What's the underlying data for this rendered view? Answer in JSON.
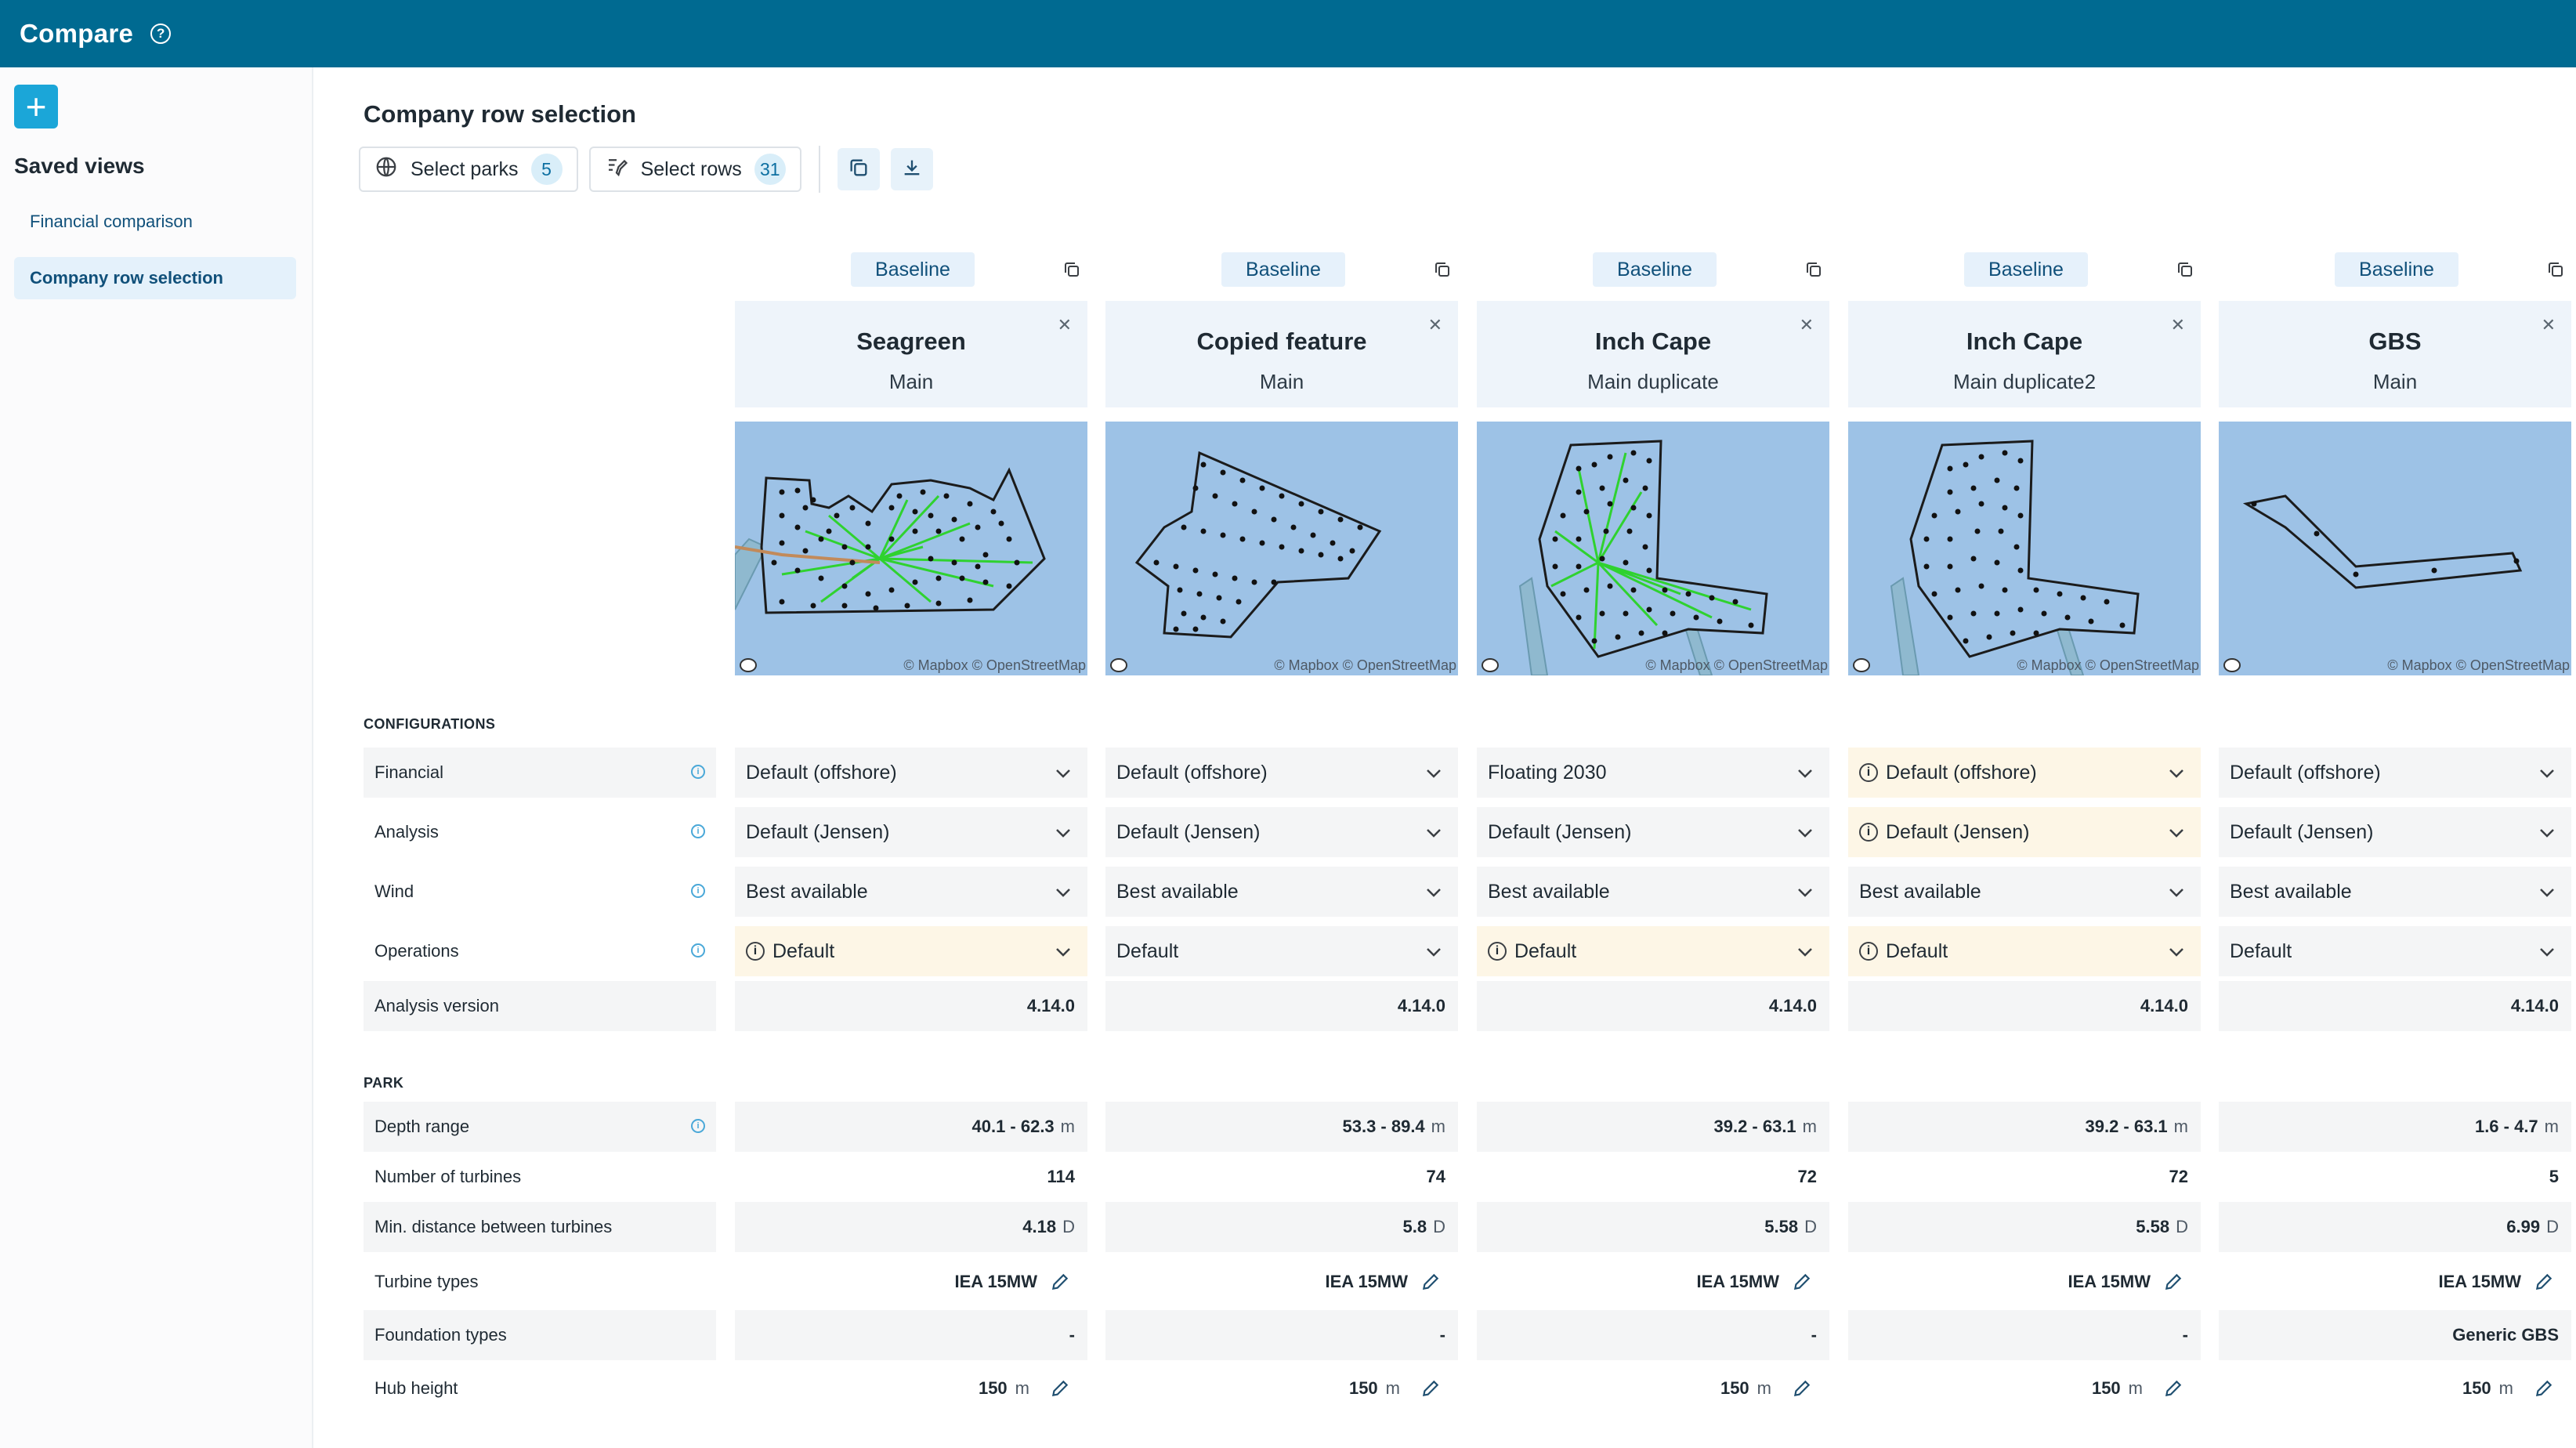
{
  "app": {
    "title": "Compare"
  },
  "sidebar": {
    "add_label": "+",
    "saved_views_title": "Saved views",
    "items": [
      {
        "label": "Financial comparison",
        "active": false
      },
      {
        "label": "Company row selection",
        "active": true
      }
    ]
  },
  "page": {
    "title": "Company row selection"
  },
  "toolbar": {
    "select_parks_label": "Select parks",
    "select_parks_count": "5",
    "select_rows_label": "Select rows",
    "select_rows_count": "31"
  },
  "sections": {
    "configurations": "CONFIGURATIONS",
    "park": "PARK"
  },
  "row_labels": {
    "financial": "Financial",
    "analysis": "Analysis",
    "wind": "Wind",
    "operations": "Operations",
    "analysis_version": "Analysis version",
    "depth_range": "Depth range",
    "num_turbines": "Number of turbines",
    "min_distance": "Min. distance between turbines",
    "turbine_types": "Turbine types",
    "foundation_types": "Foundation types",
    "hub_height": "Hub height"
  },
  "units": {
    "depth": "m",
    "distance": "D",
    "height": "m"
  },
  "map_attribution": "© Mapbox © OpenStreetMap",
  "columns": [
    {
      "badge": "Baseline",
      "name": "Seagreen",
      "branch": "Main",
      "financial": "Default (offshore)",
      "financial_warn": false,
      "analysis": "Default (Jensen)",
      "analysis_warn": false,
      "wind": "Best available",
      "operations": "Default",
      "operations_warn": true,
      "analysis_version": "4.14.0",
      "depth_range": "40.1 - 62.3",
      "num_turbines": "114",
      "min_distance": "4.18",
      "turbine_types": "IEA 15MW",
      "foundation_types": "-",
      "hub_height": "150"
    },
    {
      "badge": "Baseline",
      "name": "Copied feature",
      "branch": "Main",
      "financial": "Default (offshore)",
      "financial_warn": false,
      "analysis": "Default (Jensen)",
      "analysis_warn": false,
      "wind": "Best available",
      "operations": "Default",
      "operations_warn": false,
      "analysis_version": "4.14.0",
      "depth_range": "53.3 - 89.4",
      "num_turbines": "74",
      "min_distance": "5.8",
      "turbine_types": "IEA 15MW",
      "foundation_types": "-",
      "hub_height": "150"
    },
    {
      "badge": "Baseline",
      "name": "Inch Cape",
      "branch": "Main duplicate",
      "financial": "Floating 2030",
      "financial_warn": false,
      "analysis": "Default (Jensen)",
      "analysis_warn": false,
      "wind": "Best available",
      "operations": "Default",
      "operations_warn": true,
      "analysis_version": "4.14.0",
      "depth_range": "39.2 - 63.1",
      "num_turbines": "72",
      "min_distance": "5.58",
      "turbine_types": "IEA 15MW",
      "foundation_types": "-",
      "hub_height": "150"
    },
    {
      "badge": "Baseline",
      "name": "Inch Cape",
      "branch": "Main duplicate2",
      "financial": "Default (offshore)",
      "financial_warn": true,
      "analysis": "Default (Jensen)",
      "analysis_warn": true,
      "wind": "Best available",
      "operations": "Default",
      "operations_warn": true,
      "analysis_version": "4.14.0",
      "depth_range": "39.2 - 63.1",
      "num_turbines": "72",
      "min_distance": "5.58",
      "turbine_types": "IEA 15MW",
      "foundation_types": "-",
      "hub_height": "150"
    },
    {
      "badge": "Baseline",
      "name": "GBS",
      "branch": "Main",
      "financial": "Default (offshore)",
      "financial_warn": false,
      "analysis": "Default (Jensen)",
      "analysis_warn": false,
      "wind": "Best available",
      "operations": "Default",
      "operations_warn": false,
      "analysis_version": "4.14.0",
      "depth_range": "1.6 - 4.7",
      "num_turbines": "5",
      "min_distance": "6.99",
      "turbine_types": "IEA 15MW",
      "foundation_types": "Generic GBS",
      "hub_height": "150"
    }
  ]
}
